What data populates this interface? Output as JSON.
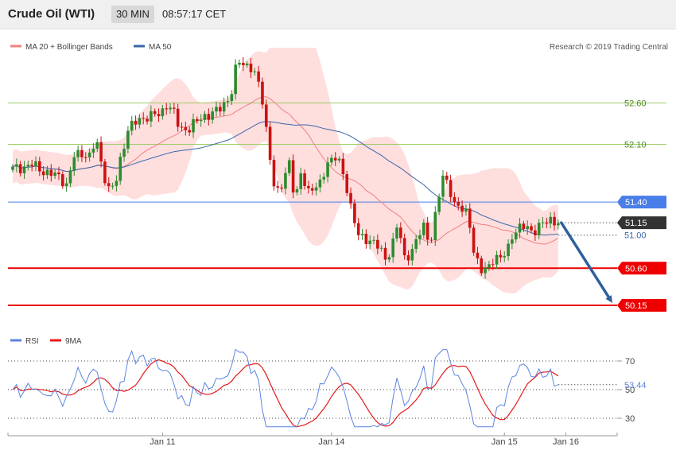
{
  "header": {
    "title": "Crude Oil (WTI)",
    "timeframe": "30 MIN",
    "time": "08:57:17 CET"
  },
  "legend": {
    "bollinger_label": "MA 20 + Bollinger Bands",
    "ma50_label": "MA 50",
    "copyright": "Research © 2019 Trading Central"
  },
  "rsi_legend": {
    "rsi_label": "RSI",
    "ma_label": "9MA"
  },
  "colors": {
    "bull": "#2e8b2e",
    "bear": "#cc1111",
    "band_fill": "#ffdede",
    "ma20": "#f08080",
    "ma50": "#3a66a8",
    "green_level": "#9ccc65",
    "blue_level": "#4a7ee8",
    "red_level": "#ee0000",
    "rsi": "#5b84e0",
    "rsi_ma": "#e41a1c"
  },
  "chart_data": [
    {
      "type": "candlestick",
      "xlabel": "",
      "ylabel": "",
      "ylim": [
        49.9,
        53.5
      ],
      "x_tick_labels": [
        "Jan 11",
        "Jan 14",
        "Jan 15",
        "Jan 16"
      ],
      "levels": [
        {
          "value": 52.6,
          "label": "52.60",
          "style": "green-line"
        },
        {
          "value": 52.1,
          "label": "52.10",
          "style": "green-line"
        },
        {
          "value": 51.4,
          "label": "51.40",
          "style": "blue-line"
        },
        {
          "value": 50.6,
          "label": "50.60",
          "style": "red-line"
        },
        {
          "value": 50.15,
          "label": "50.15",
          "style": "red-line"
        }
      ],
      "current_price": {
        "value": 51.15,
        "label": "51.15"
      },
      "ma50_now": {
        "value": 51.0,
        "label": "51.00"
      },
      "forecast_arrow": {
        "from": 51.15,
        "to": 50.15
      }
    },
    {
      "type": "line",
      "xlabel": "",
      "ylabel": "",
      "ylim": [
        20,
        80
      ],
      "y_tick_labels": [
        "70",
        "50",
        "30"
      ],
      "series": [
        {
          "name": "RSI",
          "last": 53.44
        },
        {
          "name": "9MA"
        }
      ],
      "current_value": {
        "value": 53.44,
        "label": "53.44"
      }
    }
  ]
}
